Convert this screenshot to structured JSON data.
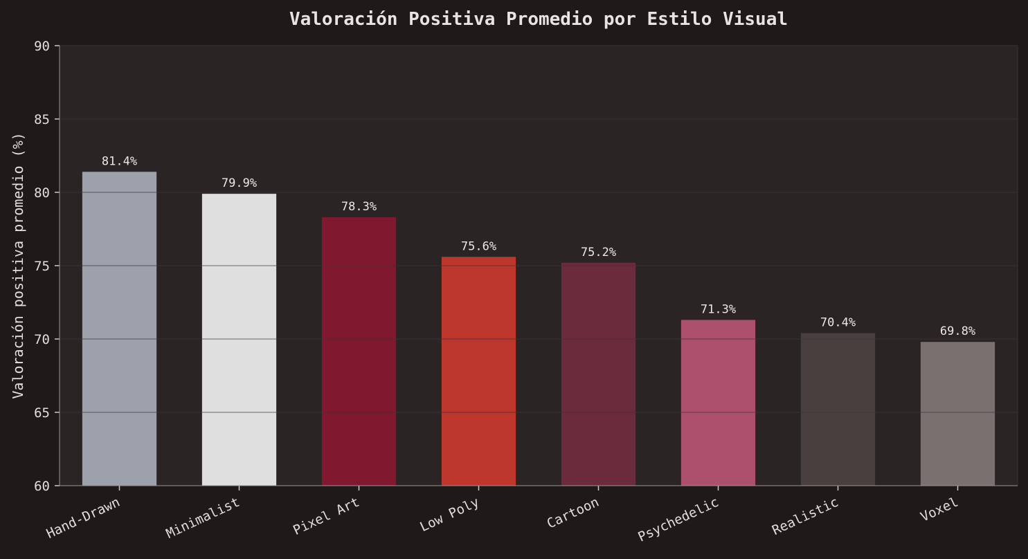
{
  "chart_data": {
    "type": "bar",
    "title": "Valoración Positiva Promedio por Estilo Visual",
    "xlabel": "",
    "ylabel": "Valoración positiva promedio (%)",
    "ylim": [
      60,
      90
    ],
    "yticks": [
      60,
      65,
      70,
      75,
      80,
      85,
      90
    ],
    "grid": true,
    "categories": [
      "Hand-Drawn",
      "Minimalist",
      "Pixel Art",
      "Low Poly",
      "Cartoon",
      "Psychedelic",
      "Realistic",
      "Voxel"
    ],
    "values": [
      81.4,
      79.9,
      78.3,
      75.6,
      75.2,
      71.3,
      70.4,
      69.8
    ],
    "data_labels": [
      "81.4%",
      "79.9%",
      "78.3%",
      "75.6%",
      "75.2%",
      "71.3%",
      "70.4%",
      "69.8%"
    ],
    "colors": [
      "#9da1ab",
      "#dfdfdf",
      "#801930",
      "#bd372c",
      "#6c2a3d",
      "#ad506e",
      "#4a3f3f",
      "#7a706f"
    ]
  },
  "style": {
    "background": "#1e1a1a",
    "plot_background": "#2a2424",
    "grid_color": "#3a3232"
  }
}
